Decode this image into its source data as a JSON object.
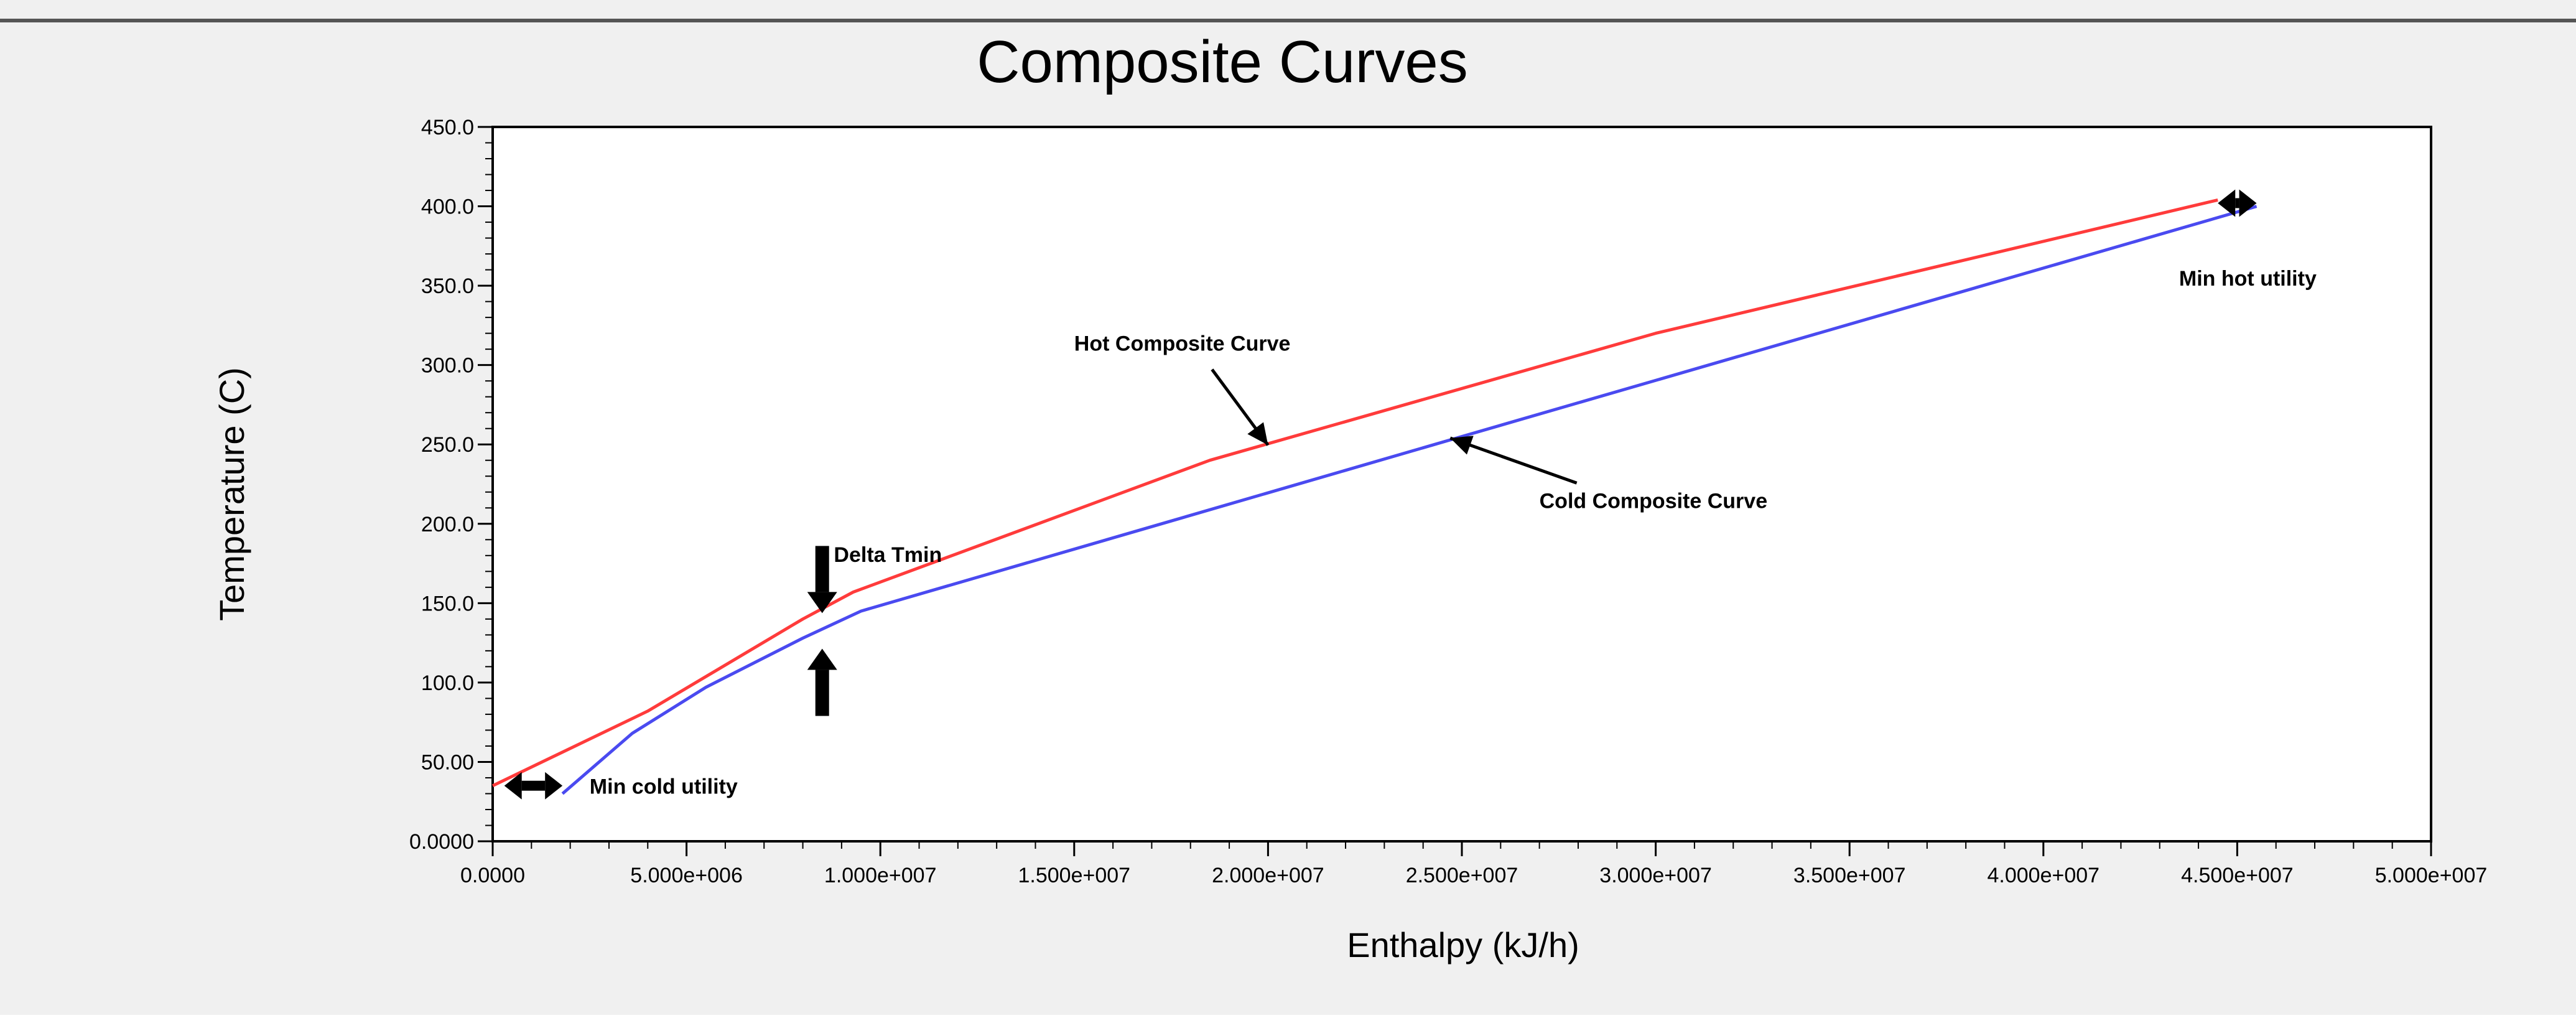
{
  "colors": {
    "panel_bg": "#f0f0f0",
    "plot_bg": "#ffffff",
    "hot": "#ff3b3b",
    "cold": "#4a4af0",
    "text": "#000000"
  },
  "chart_data": {
    "type": "line",
    "title": "Composite Curves",
    "xlabel": "Enthalpy (kJ/h)",
    "ylabel": "Temperature (C)",
    "xlim": [
      0,
      50000000
    ],
    "ylim": [
      0,
      450
    ],
    "xticks": [
      0,
      5000000,
      10000000,
      15000000,
      20000000,
      25000000,
      30000000,
      35000000,
      40000000,
      45000000,
      50000000
    ],
    "xtick_labels": [
      "0.0000",
      "5.000e+006",
      "1.000e+007",
      "1.500e+007",
      "2.000e+007",
      "2.500e+007",
      "3.000e+007",
      "3.500e+007",
      "4.000e+007",
      "4.500e+007",
      "5.000e+007"
    ],
    "yticks": [
      0,
      50,
      100,
      150,
      200,
      250,
      300,
      350,
      400,
      450
    ],
    "ytick_labels": [
      "0.0000",
      "50.00",
      "100.0",
      "150.0",
      "200.0",
      "250.0",
      "300.0",
      "350.0",
      "400.0",
      "450.0"
    ],
    "series": [
      {
        "name": "Hot Composite Curve",
        "color": "#ff3b3b",
        "x": [
          0,
          4000000,
          8000000,
          9300000,
          18500000,
          30000000,
          44500000
        ],
        "y": [
          35,
          82,
          140,
          157,
          240,
          320,
          404
        ]
      },
      {
        "name": "Cold Composite Curve",
        "color": "#4a4af0",
        "x": [
          1800000,
          3600000,
          5500000,
          8000000,
          9500000,
          25000000,
          45500000
        ],
        "y": [
          30,
          68,
          97,
          128,
          145,
          255,
          400
        ]
      }
    ],
    "annotations": {
      "hot_curve": {
        "text": "Hot Composite Curve",
        "x": 15000000,
        "y": 309,
        "arrow_to_x": 20000000,
        "arrow_to_y": 248
      },
      "cold_curve": {
        "text": "Cold Composite Curve",
        "x": 27000000,
        "y": 210,
        "arrow_to_x": 24700000,
        "arrow_to_y": 254
      },
      "delta_tmin": {
        "text": "Delta Tmin",
        "x": 8800000,
        "y": 176,
        "at_x": 8500000,
        "top_y": 139,
        "bottom_y": 126
      },
      "min_cold_utility": {
        "text": "Min cold utility",
        "x": 2500000,
        "y": 30,
        "from_x": 300000,
        "to_x": 1800000,
        "arrow_y": 35
      },
      "min_hot_utility": {
        "text": "Min hot utility",
        "x": 43500000,
        "y": 350,
        "from_x": 44500000,
        "to_x": 45500000,
        "arrow_y": 402
      }
    }
  }
}
